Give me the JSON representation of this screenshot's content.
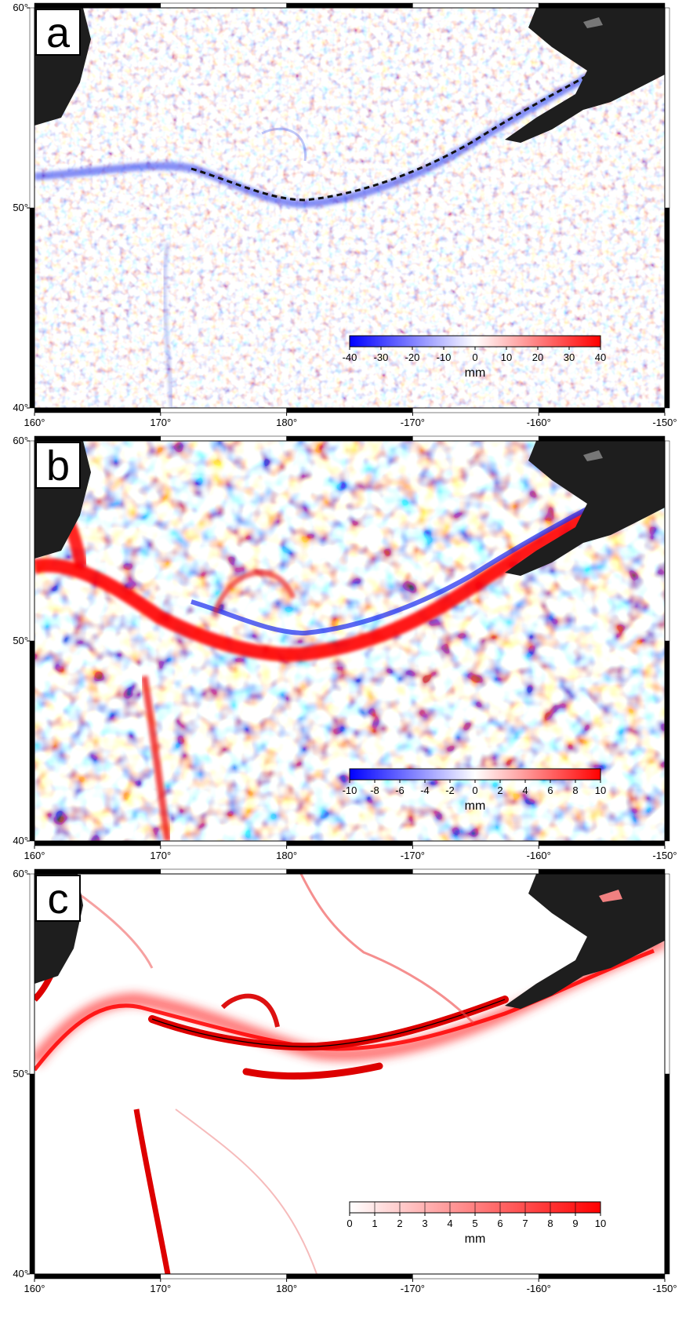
{
  "panels": [
    {
      "label": "a",
      "colorbar": {
        "ticks": [
          -40,
          -30,
          -20,
          -10,
          0,
          10,
          20,
          30,
          40
        ],
        "lim": [
          -40,
          40
        ],
        "unit": "mm",
        "colors": [
          "#0000ff",
          "#ffffff",
          "#ff0000"
        ]
      }
    },
    {
      "label": "b",
      "colorbar": {
        "ticks": [
          -10,
          -8,
          -6,
          -4,
          -2,
          0,
          2,
          4,
          6,
          8,
          10
        ],
        "lim": [
          -10,
          10
        ],
        "unit": "mm",
        "colors": [
          "#0000ff",
          "#ffffff",
          "#ff0000"
        ]
      }
    },
    {
      "label": "c",
      "colorbar": {
        "ticks": [
          0,
          1,
          2,
          3,
          4,
          5,
          6,
          7,
          8,
          9,
          10
        ],
        "lim": [
          0,
          10
        ],
        "unit": "mm",
        "colors": [
          "#ffffff",
          "#ff0000"
        ]
      }
    }
  ],
  "lon_lim": [
    160,
    -150
  ],
  "lat_lim": [
    40,
    60
  ],
  "lon_ticks": [
    {
      "value": 160,
      "label": "160°"
    },
    {
      "value": 170,
      "label": "170°"
    },
    {
      "value": 180,
      "label": "180°"
    },
    {
      "value": -170,
      "label": "-170°"
    },
    {
      "value": -160,
      "label": "-160°"
    },
    {
      "value": -150,
      "label": "-150°"
    }
  ],
  "lat_ticks": [
    {
      "value": 40,
      "label": "40°"
    },
    {
      "value": 50,
      "label": "50°"
    },
    {
      "value": 60,
      "label": "60°"
    }
  ]
}
